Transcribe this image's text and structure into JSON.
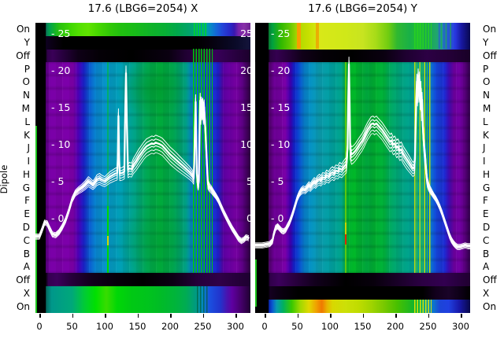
{
  "panels": [
    {
      "title": "17.6 (LBG6=2054) X",
      "inner_yticks_left": [
        "- 25",
        "- 20",
        "- 15",
        "- 10",
        "- 5",
        "- 0"
      ],
      "inner_yticks_right": [
        "25",
        "20",
        "15",
        "10",
        "5",
        "0"
      ],
      "xtick_labels": [
        "0",
        "50",
        "100",
        "150",
        "200",
        "250",
        "300"
      ]
    },
    {
      "title": "17.6 (LBG6=2054) Y",
      "inner_yticks_left": [
        "- 25",
        "- 20",
        "- 15",
        "- 10",
        "- 5",
        "- 0"
      ],
      "inner_yticks_right": [],
      "xtick_labels": [
        "0",
        "50",
        "100",
        "150",
        "200",
        "250",
        "300"
      ]
    }
  ],
  "left_axis": {
    "label": "Dipole",
    "rows": [
      "On",
      "Y",
      "Off",
      "P",
      "O",
      "N",
      "M",
      "L",
      "K",
      "J",
      "I",
      "H",
      "G",
      "F",
      "E",
      "D",
      "C",
      "B",
      "A",
      "Off",
      "X",
      "On"
    ]
  },
  "right_axis": {
    "rows": [
      "On",
      "Y",
      "Off",
      "P",
      "O",
      "N",
      "M",
      "L",
      "K",
      "J",
      "I",
      "H",
      "G",
      "F",
      "E",
      "D",
      "C",
      "B",
      "A",
      "Off",
      "X",
      "On"
    ]
  },
  "colors": {
    "background": "#ffffff",
    "text": "#000000",
    "curve": "#ffffff",
    "inner_tick_text": "#ffffff",
    "purple": "#7a00a8",
    "dark_purple": "#2a0040",
    "blue": "#1448dc",
    "teal": "#00a0a0",
    "green": "#00b030",
    "bright_green": "#00e000",
    "yellow": "#d8e818",
    "orange": "#f07800",
    "red": "#e02800",
    "black_band": "#000000"
  },
  "chart_data": [
    {
      "type": "heatmap+line",
      "title": "17.6 (LBG6=2054) X",
      "xlabel": "",
      "ylabel": "Dipole",
      "x_ticks": [
        0,
        50,
        100,
        150,
        200,
        250,
        300
      ],
      "x_range": [
        -6,
        323
      ],
      "value_ticks": [
        25,
        20,
        15,
        10,
        5,
        0
      ],
      "heatmap_rows": [
        "On",
        "Y",
        "Off",
        "P",
        "O",
        "N",
        "M",
        "L",
        "K",
        "J",
        "I",
        "H",
        "G",
        "F",
        "E",
        "D",
        "C",
        "B",
        "A",
        "Off",
        "X",
        "On"
      ],
      "heatmap_note": "dipole rows P..A purple edges, blue-cyan-green center; top On row green gradient; Y row black; Off rows dark purple; bottom X+On rows green gradient; bright green vertical streaks near x=130 and x=235-260",
      "curve": {
        "points": [
          [
            -6,
            -2.5
          ],
          [
            0,
            -2.5
          ],
          [
            4,
            -1.6
          ],
          [
            8,
            -0.6
          ],
          [
            12,
            -0.7
          ],
          [
            15,
            -1.3
          ],
          [
            20,
            -2.2
          ],
          [
            25,
            -2.3
          ],
          [
            30,
            -1.9
          ],
          [
            35,
            -1.2
          ],
          [
            40,
            -0.3
          ],
          [
            45,
            1.0
          ],
          [
            50,
            2.5
          ],
          [
            55,
            3.4
          ],
          [
            60,
            3.8
          ],
          [
            65,
            4.1
          ],
          [
            70,
            4.5
          ],
          [
            75,
            5.0
          ],
          [
            78,
            4.8
          ],
          [
            82,
            4.5
          ],
          [
            85,
            4.8
          ],
          [
            88,
            5.2
          ],
          [
            92,
            5.4
          ],
          [
            95,
            5.2
          ],
          [
            100,
            5.0
          ],
          [
            104,
            5.3
          ],
          [
            108,
            5.6
          ],
          [
            112,
            5.8
          ],
          [
            116,
            6.0
          ],
          [
            119,
            6.1
          ],
          [
            120,
            8.0
          ],
          [
            121,
            13.8
          ],
          [
            122,
            8.0
          ],
          [
            123,
            6.0
          ],
          [
            127,
            6.1
          ],
          [
            130,
            6.3
          ],
          [
            131,
            12.5
          ],
          [
            132.5,
            19.6
          ],
          [
            134,
            12.5
          ],
          [
            135.5,
            6.5
          ],
          [
            138,
            6.7
          ],
          [
            141,
            6.6
          ],
          [
            144,
            7.2
          ],
          [
            148,
            7.7
          ],
          [
            152,
            8.3
          ],
          [
            156,
            8.8
          ],
          [
            160,
            9.3
          ],
          [
            164,
            9.7
          ],
          [
            168,
            9.9
          ],
          [
            172,
            10.1
          ],
          [
            175,
            10.0
          ],
          [
            178,
            10.2
          ],
          [
            181,
            10.1
          ],
          [
            184,
            10.0
          ],
          [
            188,
            9.8
          ],
          [
            192,
            9.4
          ],
          [
            196,
            9.0
          ],
          [
            200,
            8.6
          ],
          [
            205,
            8.2
          ],
          [
            210,
            7.8
          ],
          [
            215,
            7.4
          ],
          [
            220,
            7.0
          ],
          [
            225,
            6.6
          ],
          [
            230,
            6.2
          ],
          [
            234,
            5.8
          ],
          [
            236,
            5.4
          ],
          [
            237,
            7.5
          ],
          [
            238,
            12.0
          ],
          [
            239,
            15.7
          ],
          [
            240,
            11.0
          ],
          [
            241,
            6.0
          ],
          [
            242,
            4.8
          ],
          [
            243,
            4.4
          ],
          [
            244,
            5.0
          ],
          [
            245,
            11.0
          ],
          [
            246,
            15.9
          ],
          [
            247,
            14.0
          ],
          [
            248,
            15.4
          ],
          [
            249,
            14.6
          ],
          [
            250,
            15.2
          ],
          [
            251,
            14.0
          ],
          [
            252,
            15.0
          ],
          [
            253,
            13.5
          ],
          [
            254,
            12.0
          ],
          [
            255,
            10.0
          ],
          [
            256,
            8.0
          ],
          [
            257,
            6.0
          ],
          [
            258,
            4.6
          ],
          [
            260,
            4.2
          ],
          [
            263,
            3.9
          ],
          [
            266,
            3.5
          ],
          [
            270,
            3.0
          ],
          [
            274,
            2.4
          ],
          [
            278,
            1.6
          ],
          [
            282,
            0.8
          ],
          [
            286,
            0.1
          ],
          [
            290,
            -0.6
          ],
          [
            295,
            -1.4
          ],
          [
            300,
            -2.1
          ],
          [
            305,
            -2.8
          ],
          [
            309,
            -3.1
          ],
          [
            313,
            -2.9
          ],
          [
            316,
            -2.6
          ],
          [
            320,
            -2.7
          ]
        ]
      }
    },
    {
      "type": "heatmap+line",
      "title": "17.6 (LBG6=2054) Y",
      "xlabel": "",
      "ylabel": "Dipole",
      "x_ticks": [
        0,
        50,
        100,
        150,
        200,
        250,
        300
      ],
      "x_range": [
        -14,
        320
      ],
      "value_ticks": [
        25,
        20,
        15,
        10,
        5,
        0
      ],
      "heatmap_rows": [
        "On",
        "Y",
        "Off",
        "P",
        "O",
        "N",
        "M",
        "L",
        "K",
        "J",
        "I",
        "H",
        "G",
        "F",
        "E",
        "D",
        "C",
        "B",
        "A",
        "Off",
        "X",
        "On"
      ],
      "heatmap_note": "dipole rows purple edges with teal-green center; top On+Y rows yellow-green gradient with orange streaks; bottom X row black; bottom On row yellow-orange gradient; yellow streak cluster near x=230-253; red dash on streak near x=123 row C",
      "curve": {
        "points": [
          [
            -14,
            -3.7
          ],
          [
            -4,
            -3.7
          ],
          [
            2,
            -3.6
          ],
          [
            8,
            -3.5
          ],
          [
            12,
            -3.1
          ],
          [
            14,
            -2.2
          ],
          [
            17,
            -1.3
          ],
          [
            20,
            -1.1
          ],
          [
            23,
            -1.4
          ],
          [
            26,
            -1.7
          ],
          [
            29,
            -1.8
          ],
          [
            32,
            -1.6
          ],
          [
            35,
            -1.1
          ],
          [
            38,
            -0.6
          ],
          [
            41,
            0.1
          ],
          [
            44,
            0.9
          ],
          [
            47,
            1.8
          ],
          [
            50,
            2.7
          ],
          [
            53,
            3.3
          ],
          [
            56,
            3.7
          ],
          [
            59,
            3.9
          ],
          [
            62,
            3.8
          ],
          [
            65,
            4.1
          ],
          [
            68,
            4.4
          ],
          [
            70,
            4.2
          ],
          [
            73,
            4.6
          ],
          [
            76,
            4.9
          ],
          [
            78,
            4.7
          ],
          [
            81,
            5.1
          ],
          [
            84,
            5.3
          ],
          [
            86,
            5.1
          ],
          [
            89,
            5.5
          ],
          [
            92,
            5.4
          ],
          [
            95,
            5.8
          ],
          [
            98,
            5.6
          ],
          [
            101,
            6.0
          ],
          [
            104,
            6.2
          ],
          [
            106,
            6.0
          ],
          [
            109,
            6.4
          ],
          [
            112,
            6.3
          ],
          [
            115,
            6.7
          ],
          [
            118,
            6.5
          ],
          [
            121,
            6.9
          ],
          [
            123,
            7.1
          ],
          [
            125,
            7.3
          ],
          [
            127,
            9.5
          ],
          [
            128,
            16.0
          ],
          [
            129,
            20.8
          ],
          [
            130,
            16.0
          ],
          [
            131,
            9.3
          ],
          [
            133,
            8.6
          ],
          [
            136,
            8.8
          ],
          [
            139,
            9.1
          ],
          [
            142,
            9.5
          ],
          [
            145,
            9.9
          ],
          [
            149,
            10.4
          ],
          [
            152,
            10.9
          ],
          [
            155,
            11.5
          ],
          [
            158,
            12.0
          ],
          [
            161,
            12.4
          ],
          [
            163,
            12.7
          ],
          [
            166,
            12.8
          ],
          [
            168,
            12.6
          ],
          [
            171,
            12.8
          ],
          [
            174,
            12.5
          ],
          [
            177,
            12.2
          ],
          [
            180,
            11.9
          ],
          [
            183,
            11.5
          ],
          [
            186,
            11.1
          ],
          [
            189,
            10.7
          ],
          [
            192,
            10.3
          ],
          [
            194,
            10.5
          ],
          [
            197,
            9.9
          ],
          [
            199,
            10.1
          ],
          [
            202,
            9.5
          ],
          [
            204,
            9.7
          ],
          [
            207,
            9.1
          ],
          [
            209,
            9.3
          ],
          [
            212,
            8.7
          ],
          [
            215,
            8.3
          ],
          [
            218,
            7.9
          ],
          [
            221,
            7.5
          ],
          [
            224,
            7.1
          ],
          [
            227,
            6.7
          ],
          [
            229,
            6.9
          ],
          [
            230,
            8.0
          ],
          [
            231,
            12.0
          ],
          [
            232,
            16.0
          ],
          [
            233,
            18.5
          ],
          [
            234,
            16.5
          ],
          [
            235,
            19.2
          ],
          [
            236,
            17.0
          ],
          [
            237,
            18.8
          ],
          [
            238,
            16.0
          ],
          [
            239,
            17.5
          ],
          [
            240,
            14.5
          ],
          [
            241,
            16.0
          ],
          [
            242,
            12.5
          ],
          [
            243,
            11.0
          ],
          [
            244,
            9.8
          ],
          [
            245,
            8.8
          ],
          [
            246,
            7.8
          ],
          [
            247,
            6.6
          ],
          [
            248,
            5.6
          ],
          [
            249,
            4.9
          ],
          [
            251,
            4.3
          ],
          [
            253,
            3.9
          ],
          [
            255,
            3.6
          ],
          [
            257,
            3.3
          ],
          [
            259,
            3.0
          ],
          [
            262,
            2.6
          ],
          [
            265,
            2.1
          ],
          [
            268,
            1.5
          ],
          [
            271,
            0.8
          ],
          [
            274,
            0.0
          ],
          [
            277,
            -0.8
          ],
          [
            280,
            -1.6
          ],
          [
            283,
            -2.4
          ],
          [
            286,
            -3.0
          ],
          [
            289,
            -3.4
          ],
          [
            292,
            -3.7
          ],
          [
            295,
            -3.9
          ],
          [
            299,
            -3.9
          ],
          [
            303,
            -3.8
          ],
          [
            307,
            -3.7
          ],
          [
            311,
            -3.8
          ],
          [
            315,
            -3.8
          ],
          [
            320,
            -3.8
          ]
        ]
      }
    }
  ]
}
